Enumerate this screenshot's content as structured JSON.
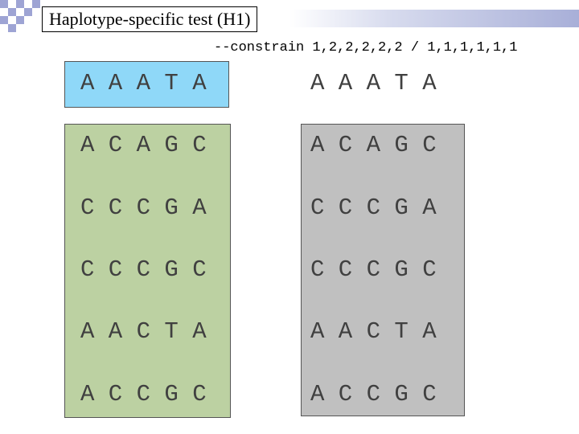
{
  "title": "Haplotype-specific test (H1)",
  "constraint": "--constrain 1,2,2,2,2,2 / 1,1,1,1,1,1",
  "header_row": {
    "left": "A A A T A",
    "right": "A A A T A"
  },
  "rows": [
    {
      "left": "A C A G C",
      "right": "A C A G C"
    },
    {
      "left": "C C C G A",
      "right": "C C C G A"
    },
    {
      "left": "C C C G C",
      "right": "C C C G C"
    },
    {
      "left": "A A C T A",
      "right": "A A C T A"
    },
    {
      "left": "A C C G C",
      "right": "A C C G C"
    }
  ],
  "colors": {
    "top_left_box": "#8fd8f8",
    "green_box": "#bcd1a2",
    "gray_box": "#c0c0c0",
    "checker": "#9ea4d4"
  }
}
